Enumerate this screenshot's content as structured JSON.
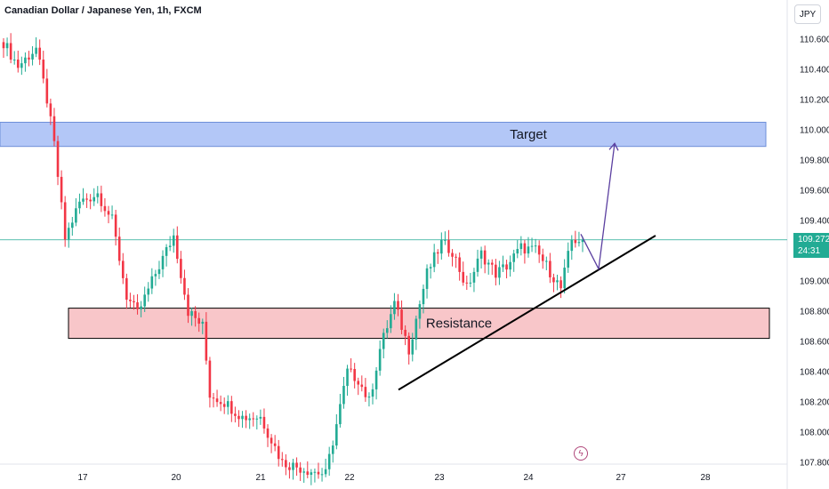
{
  "header": {
    "title": "Canadian Dollar / Japanese Yen, 1h, FXCM",
    "currency": "JPY"
  },
  "last_price": {
    "value": "109.272",
    "countdown": "24:31"
  },
  "colors": {
    "up": "#22ab94",
    "down": "#f23645",
    "target_zone": "#b3c7f7",
    "resistance_zone": "#f8c6c9",
    "trendline": "#000000",
    "projection": "#5b3fa0",
    "price_line": "#22ab94"
  },
  "icons": {
    "event": "lightning-icon"
  },
  "chart_data": {
    "type": "candlestick",
    "title": "Canadian Dollar / Japanese Yen, 1h, FXCM",
    "x_ticks": [
      "17",
      "20",
      "21",
      "22",
      "23",
      "24",
      "27",
      "28"
    ],
    "y_ticks": [
      "110.600",
      "110.400",
      "110.200",
      "110.000",
      "109.800",
      "109.600",
      "109.400",
      "109.200",
      "109.000",
      "108.800",
      "108.600",
      "108.400",
      "108.200",
      "108.000",
      "107.800"
    ],
    "ylim": [
      107.77,
      110.82
    ],
    "last_price": 109.272,
    "key_points": [
      {
        "x": 0,
        "y": 110.58
      },
      {
        "x": 4,
        "y": 110.42
      },
      {
        "x": 9,
        "y": 110.54
      },
      {
        "x": 12,
        "y": 110.2
      },
      {
        "x": 14,
        "y": 109.9
      },
      {
        "x": 17,
        "y": 109.28
      },
      {
        "x": 21,
        "y": 109.52
      },
      {
        "x": 26,
        "y": 109.58
      },
      {
        "x": 30,
        "y": 109.4
      },
      {
        "x": 34,
        "y": 108.9
      },
      {
        "x": 37,
        "y": 108.78
      },
      {
        "x": 42,
        "y": 109.05
      },
      {
        "x": 47,
        "y": 109.3
      },
      {
        "x": 51,
        "y": 108.8
      },
      {
        "x": 55,
        "y": 108.7
      },
      {
        "x": 57,
        "y": 108.25
      },
      {
        "x": 61,
        "y": 108.2
      },
      {
        "x": 66,
        "y": 108.1
      },
      {
        "x": 71,
        "y": 108.1
      },
      {
        "x": 77,
        "y": 107.8
      },
      {
        "x": 84,
        "y": 107.75
      },
      {
        "x": 89,
        "y": 107.72
      },
      {
        "x": 92,
        "y": 108.05
      },
      {
        "x": 95,
        "y": 108.4
      },
      {
        "x": 98,
        "y": 108.35
      },
      {
        "x": 101,
        "y": 108.2
      },
      {
        "x": 104,
        "y": 108.55
      },
      {
        "x": 108,
        "y": 108.85
      },
      {
        "x": 112,
        "y": 108.55
      },
      {
        "x": 114,
        "y": 108.75
      },
      {
        "x": 117,
        "y": 109.05
      },
      {
        "x": 121,
        "y": 109.25
      },
      {
        "x": 124,
        "y": 109.2
      },
      {
        "x": 128,
        "y": 108.95
      },
      {
        "x": 132,
        "y": 109.18
      },
      {
        "x": 136,
        "y": 109.05
      },
      {
        "x": 139,
        "y": 109.1
      },
      {
        "x": 143,
        "y": 109.22
      },
      {
        "x": 147,
        "y": 109.2
      },
      {
        "x": 150,
        "y": 109.1
      },
      {
        "x": 154,
        "y": 108.95
      },
      {
        "x": 157,
        "y": 109.27
      },
      {
        "x": 160,
        "y": 109.272
      }
    ],
    "annotations": [
      {
        "type": "zone",
        "label": "Target",
        "from": 109.89,
        "to": 110.05
      },
      {
        "type": "zone",
        "label": "Resistance",
        "from": 108.62,
        "to": 108.82
      },
      {
        "type": "trendline",
        "from": {
          "day": "22",
          "price": 108.28
        },
        "to": {
          "day": "27",
          "price": 109.3
        }
      },
      {
        "type": "projection",
        "points": [
          {
            "price": 109.31
          },
          {
            "price": 109.08
          },
          {
            "price": 109.91
          }
        ]
      }
    ],
    "grid": false
  }
}
